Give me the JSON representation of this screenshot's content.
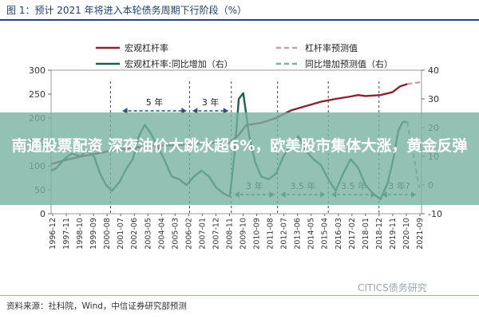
{
  "figure_title": "图 1：预计 2021 年将进入本轮债务周期下行阶段（%）",
  "headline": "南通股票配资 深夜油价大跳水超6%，欧美股市集体大涨，黄金反弹",
  "source": "资料来源：社科院，Wind，中信证券研究部预测",
  "watermark": "CITICS债务研究",
  "colors": {
    "leverage": "#8b2232",
    "growth": "#1f5e4e",
    "banner": "#78b2a0",
    "title": "#1f3f6b"
  },
  "chart_data": {
    "type": "line",
    "legend_position": "top",
    "left_axis": {
      "ticks": [
        0,
        50,
        100,
        150,
        200,
        250,
        300
      ],
      "range": [
        0,
        300
      ]
    },
    "right_axis": {
      "ticks": [
        -10,
        0,
        10,
        20,
        30,
        40
      ],
      "range": [
        -10,
        40
      ]
    },
    "x_labels": [
      "1996-12",
      "1997-11",
      "1998-10",
      "1999-09",
      "2000-08",
      "2001-07",
      "2002-06",
      "2003-05",
      "2004-04",
      "2005-03",
      "2006-02",
      "2007-01",
      "2007-12",
      "2008-11",
      "2009-10",
      "2010-09",
      "2011-08",
      "2012-07",
      "2013-06",
      "2014-05",
      "2015-04",
      "2016-03",
      "2017-02",
      "2018-01",
      "2018-12",
      "2019-11",
      "2020-10",
      "2021-09"
    ],
    "series": [
      {
        "name": "宏观杠杆率",
        "axis": "left",
        "style": "solid",
        "color": "#8b2232",
        "x": [
          1996.92,
          1998,
          1999,
          2000,
          2001,
          2002,
          2003,
          2004,
          2005,
          2006,
          2007,
          2008,
          2008.9,
          2009.5,
          2010,
          2011,
          2012,
          2013,
          2014,
          2015,
          2016,
          2017,
          2017.5,
          2018,
          2019,
          2019.8,
          2020.3,
          2020.8
        ],
        "y": [
          104,
          113,
          120,
          126,
          132,
          136,
          140,
          143,
          143,
          145,
          147,
          148,
          148,
          165,
          185,
          190,
          200,
          216,
          225,
          234,
          240,
          245,
          248,
          246,
          248,
          254,
          266,
          271
        ]
      },
      {
        "name": "杠杆率预测值",
        "axis": "left",
        "style": "dashed",
        "color": "#c8a0a8",
        "x": [
          2020.8,
          2021.2,
          2021.75
        ],
        "y": [
          271,
          273,
          275
        ]
      },
      {
        "name": "宏观杠杆率:同比增加（右）",
        "axis": "right",
        "style": "solid",
        "color": "#1f5e4e",
        "x": [
          1996.92,
          1997.3,
          1997.8,
          1998.3,
          1998.9,
          1999.3,
          1999.8,
          2000.2,
          2000.6,
          2001,
          2001.5,
          2002,
          2002.4,
          2002.8,
          2003.2,
          2003.6,
          2004,
          2004.5,
          2005,
          2005.5,
          2006,
          2006.5,
          2007,
          2007.5,
          2008,
          2008.5,
          2008.9,
          2009.2,
          2009.5,
          2009.8,
          2010.2,
          2010.6,
          2011,
          2011.5,
          2012,
          2012.5,
          2013,
          2013.5,
          2014,
          2014.5,
          2015,
          2015.5,
          2016,
          2016.5,
          2017,
          2017.5,
          2018,
          2018.5,
          2019,
          2019.5,
          2019.9,
          2020.2,
          2020.5,
          2020.8
        ],
        "y": [
          5,
          6,
          9,
          11,
          10,
          12,
          10,
          4,
          0,
          -2,
          1,
          6,
          9,
          17,
          21,
          18,
          14,
          9,
          3,
          2,
          0,
          3,
          5,
          3,
          -1,
          -3,
          -4,
          10,
          30,
          32,
          17,
          8,
          3,
          2,
          4,
          10,
          14,
          17,
          12,
          9,
          7,
          2,
          -2,
          4,
          9,
          6,
          0,
          -3,
          -5,
          1,
          10,
          19,
          22,
          22
        ]
      },
      {
        "name": "同比增加预测值（右）",
        "axis": "right",
        "style": "dashed",
        "color": "#8fa7a0",
        "x": [
          2020.8,
          2021,
          2021.3,
          2021.6
        ],
        "y": [
          22,
          16,
          8,
          -1
        ]
      }
    ],
    "cycle_annotations": [
      {
        "label": "5 年",
        "from": 2001.5,
        "to": 2006.2,
        "row": "top"
      },
      {
        "label": "3 年",
        "from": 2006.2,
        "to": 2009.0,
        "row": "top"
      },
      {
        "label": "3 年",
        "from": 2009.0,
        "to": 2012.1,
        "row": "bottom"
      },
      {
        "label": "3.5 年",
        "from": 2012.1,
        "to": 2015.5,
        "row": "bottom"
      },
      {
        "label": "3.5 年",
        "from": 2015.5,
        "to": 2018.9,
        "row": "bottom"
      },
      {
        "label": "3 年?",
        "from": 2018.9,
        "to": 2021.6,
        "row": "bottom"
      }
    ],
    "cycle_boundaries": [
      2000.9,
      2006.2,
      2009.0,
      2012.1,
      2015.5,
      2018.9
    ]
  }
}
